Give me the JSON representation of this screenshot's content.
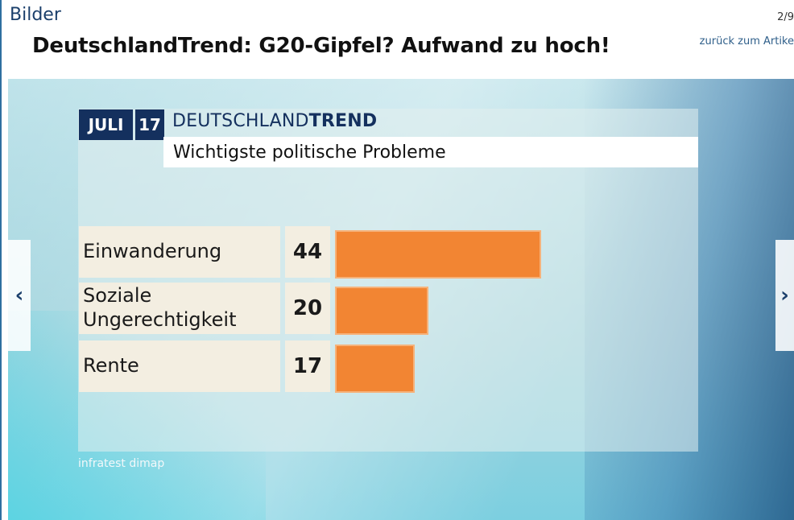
{
  "header": {
    "section_label": "Bilder",
    "title": "DeutschlandTrend: G20-Gipfel? Aufwand zu hoch!",
    "counter": "2/9",
    "back_link": "zurück zum Artike"
  },
  "graphic": {
    "badge_month": "JULI",
    "badge_year": "17",
    "brand_regular": "DEUTSCHLAND",
    "brand_bold": "TREND",
    "subtitle": "Wichtigste politische Probleme",
    "source": "infratest dimap"
  },
  "chart_data": {
    "type": "bar",
    "orientation": "horizontal",
    "title": "Wichtigste politische Probleme",
    "categories": [
      "Einwanderung",
      "Soziale Ungerechtigkeit",
      "Rente"
    ],
    "category_lines": [
      [
        "Einwanderung"
      ],
      [
        "Soziale",
        "Ungerechtigkeit"
      ],
      [
        "Rente"
      ]
    ],
    "values": [
      44,
      20,
      17
    ],
    "xlim": [
      0,
      44
    ],
    "colors": {
      "bar": "#f28533",
      "cell": "#f3eee1",
      "badge": "#14305e"
    }
  },
  "navigation": {
    "prev_glyph": "‹",
    "next_glyph": "›"
  }
}
